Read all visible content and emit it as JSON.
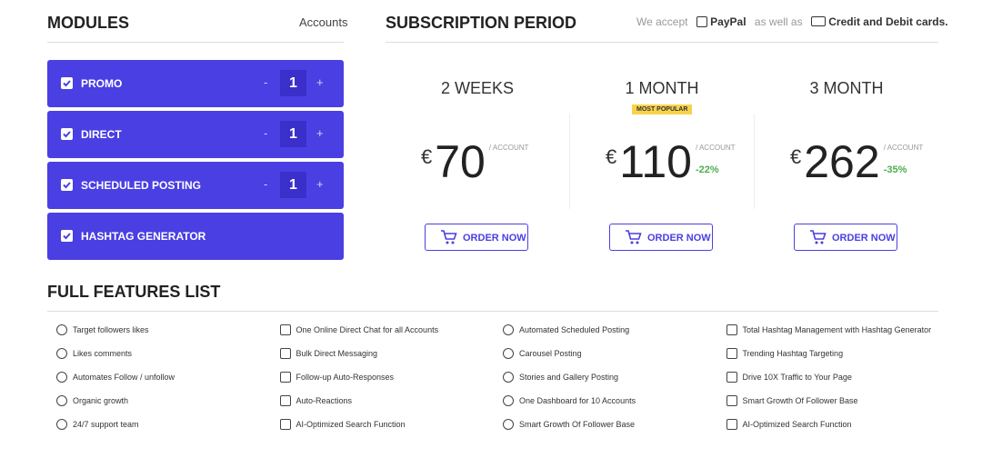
{
  "modules_panel": {
    "title": "MODULES",
    "accounts_label": "Accounts",
    "minus": "-",
    "plus": "+",
    "modules": [
      {
        "name": "PROMO",
        "qty": 1
      },
      {
        "name": "DIRECT",
        "qty": 1
      },
      {
        "name": "SCHEDULED POSTING",
        "qty": 1
      },
      {
        "name": "HASHTAG GENERATOR"
      }
    ]
  },
  "subscription": {
    "title": "SUBSCRIPTION PERIOD",
    "we_accept": "We accept",
    "paypal": "PayPal",
    "as_well_as": "as well as",
    "cards": "Credit and Debit cards.",
    "currency": "€",
    "unit": "/ ACCOUNT",
    "order_button": "ORDER NOW",
    "plans": [
      {
        "period": "2 WEEKS",
        "price": 70
      },
      {
        "period": "1 MONTH",
        "badge": "MOST POPULAR",
        "price": 110,
        "discount": "-22%"
      },
      {
        "period": "3 MONTH",
        "price": 262,
        "discount": "-35%"
      }
    ]
  },
  "features": {
    "title": "FULL FEATURES LIST",
    "columns": [
      [
        "Target followers likes",
        "Likes comments",
        "Automates Follow / unfollow",
        "Organic growth",
        "24/7 support team"
      ],
      [
        "One Online Direct Chat for all Accounts",
        "Bulk Direct Messaging",
        "Follow-up Auto-Responses",
        "Auto-Reactions",
        "AI-Optimized Search Function"
      ],
      [
        "Automated Scheduled Posting",
        "Carousel Posting",
        "Stories and Gallery Posting",
        "One Dashboard for 10 Accounts",
        "Smart Growth Of Follower Base"
      ],
      [
        "Total Hashtag Management with Hashtag Generator",
        "Trending Hashtag Targeting",
        "Drive 10X Traffic to Your Page",
        "Smart Growth Of Follower Base",
        "AI-Optimized Search Function"
      ]
    ]
  }
}
